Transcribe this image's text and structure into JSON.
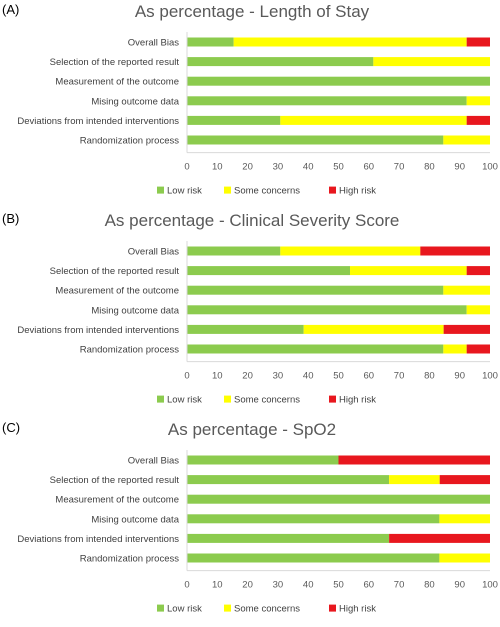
{
  "colors": {
    "low": "#8CCB4E",
    "some": "#FFFF00",
    "high": "#E8171E",
    "axis": "#D9D9D9"
  },
  "legend": [
    "Low risk",
    "Some concerns",
    "High risk"
  ],
  "chart_data": [
    {
      "panel": "(A)",
      "type": "bar",
      "orientation": "horizontal",
      "stacked": true,
      "title": "As percentage - Length of Stay",
      "categories": [
        "Overall Bias",
        "Selection of the reported result",
        "Measurement of the outcome",
        "Mising outcome data",
        "Deviations from intended interventions",
        "Randomization process"
      ],
      "series": [
        {
          "name": "Low risk",
          "values": [
            15.4,
            61.5,
            100,
            92.3,
            30.8,
            84.6
          ]
        },
        {
          "name": "Some concerns",
          "values": [
            76.9,
            38.5,
            0,
            7.7,
            61.5,
            15.4
          ]
        },
        {
          "name": "High risk",
          "values": [
            7.7,
            0,
            0,
            0,
            7.7,
            0
          ]
        }
      ],
      "xlim": [
        0,
        100
      ],
      "xticks": [
        0,
        10,
        20,
        30,
        40,
        50,
        60,
        70,
        80,
        90,
        100
      ]
    },
    {
      "panel": "(B)",
      "type": "bar",
      "orientation": "horizontal",
      "stacked": true,
      "title": "As percentage - Clinical Severity Score",
      "categories": [
        "Overall Bias",
        "Selection of the reported result",
        "Measurement of the outcome",
        "Mising outcome data",
        "Deviations from intended interventions",
        "Randomization process"
      ],
      "series": [
        {
          "name": "Low risk",
          "values": [
            30.8,
            53.8,
            84.6,
            92.3,
            38.5,
            84.6
          ]
        },
        {
          "name": "Some concerns",
          "values": [
            46.2,
            38.5,
            15.4,
            7.7,
            46.2,
            7.7
          ]
        },
        {
          "name": "High risk",
          "values": [
            23.0,
            7.7,
            0,
            0,
            15.3,
            7.7
          ]
        }
      ],
      "xlim": [
        0,
        100
      ],
      "xticks": [
        0,
        10,
        20,
        30,
        40,
        50,
        60,
        70,
        80,
        90,
        100
      ]
    },
    {
      "panel": "(C)",
      "type": "bar",
      "orientation": "horizontal",
      "stacked": true,
      "title": "As percentage - SpO2",
      "categories": [
        "Overall Bias",
        "Selection of the reported result",
        "Measurement of the outcome",
        "Mising outcome data",
        "Deviations from intended interventions",
        "Randomization process"
      ],
      "series": [
        {
          "name": "Low risk",
          "values": [
            50,
            66.7,
            100,
            83.3,
            66.7,
            83.3
          ]
        },
        {
          "name": "Some concerns",
          "values": [
            0,
            16.7,
            0,
            16.7,
            0,
            16.7
          ]
        },
        {
          "name": "High risk",
          "values": [
            50,
            16.6,
            0,
            0,
            33.3,
            0
          ]
        }
      ],
      "xlim": [
        0,
        100
      ],
      "xticks": [
        0,
        10,
        20,
        30,
        40,
        50,
        60,
        70,
        80,
        90,
        100
      ]
    }
  ]
}
